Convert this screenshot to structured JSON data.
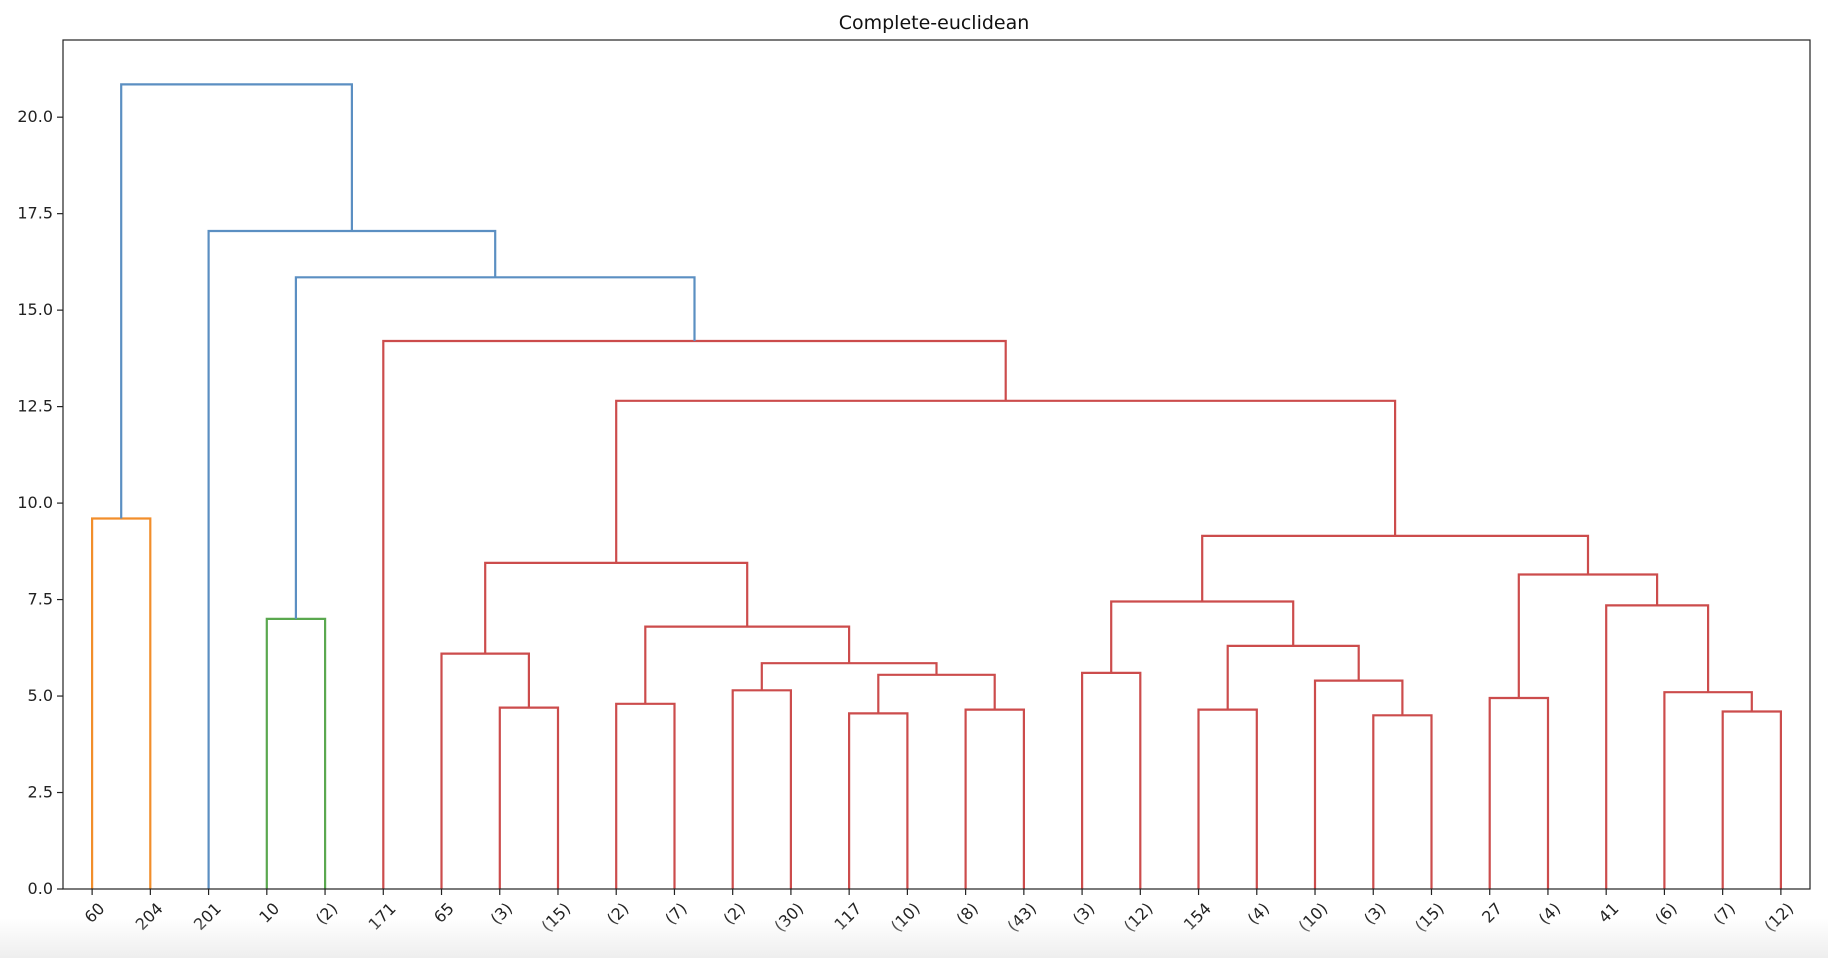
{
  "chart_data": {
    "type": "dendrogram",
    "title": "Complete-euclidean",
    "xlabel": "",
    "ylabel": "",
    "ylim": [
      0,
      22.0
    ],
    "yticks": [
      0.0,
      2.5,
      5.0,
      7.5,
      10.0,
      12.5,
      15.0,
      17.5,
      20.0
    ],
    "grid": false,
    "leaves": [
      "60",
      "204",
      "201",
      "10",
      "(2)",
      "171",
      "65",
      "(3)",
      "(15)",
      "(2)",
      "(7)",
      "(2)",
      "(30)",
      "117",
      "(10)",
      "(8)",
      "(43)",
      "(3)",
      "(12)",
      "154",
      "(4)",
      "(10)",
      "(3)",
      "(15)",
      "27",
      "(4)",
      "41",
      "(6)",
      "(7)",
      "(12)"
    ],
    "links": [
      {
        "left": 0,
        "right": 1,
        "height": 9.6,
        "color": "orange"
      },
      {
        "left": 3,
        "right": 4,
        "height": 7.0,
        "color": "green"
      },
      {
        "left": 7,
        "right": 8,
        "height": 4.7,
        "color": "red"
      },
      {
        "left": 6,
        "right": "L3",
        "height": 6.1,
        "color": "red"
      },
      {
        "left": 9,
        "right": 10,
        "height": 4.8,
        "color": "red"
      },
      {
        "left": 11,
        "right": 12,
        "height": 5.15,
        "color": "red"
      },
      {
        "left": 13,
        "right": 14,
        "height": 4.55,
        "color": "red"
      },
      {
        "left": 15,
        "right": 16,
        "height": 4.65,
        "color": "red"
      },
      {
        "left": "L7",
        "right": "L8",
        "height": 5.55,
        "color": "red"
      },
      {
        "left": "L6",
        "right": "L9",
        "height": 5.85,
        "color": "red"
      },
      {
        "left": "L5",
        "right": "L10",
        "height": 6.8,
        "color": "red"
      },
      {
        "left": "L4",
        "right": "L11",
        "height": 8.45,
        "color": "red"
      },
      {
        "left": 17,
        "right": 18,
        "height": 5.6,
        "color": "red"
      },
      {
        "left": 19,
        "right": 20,
        "height": 4.65,
        "color": "red"
      },
      {
        "left": 22,
        "right": 23,
        "height": 4.5,
        "color": "red"
      },
      {
        "left": 21,
        "right": "L15",
        "height": 5.4,
        "color": "red"
      },
      {
        "left": "L14",
        "right": "L16",
        "height": 6.3,
        "color": "red"
      },
      {
        "left": "L13",
        "right": "L17",
        "height": 7.45,
        "color": "red"
      },
      {
        "left": 24,
        "right": 25,
        "height": 4.95,
        "color": "red"
      },
      {
        "left": 28,
        "right": 29,
        "height": 4.6,
        "color": "red"
      },
      {
        "left": 27,
        "right": "L20",
        "height": 5.1,
        "color": "red"
      },
      {
        "left": 26,
        "right": "L21",
        "height": 7.35,
        "color": "red"
      },
      {
        "left": "L19",
        "right": "L22",
        "height": 8.15,
        "color": "red"
      },
      {
        "left": "L18",
        "right": "L23",
        "height": 9.15,
        "color": "red"
      },
      {
        "left": "L12",
        "right": "L24",
        "height": 12.65,
        "color": "red"
      },
      {
        "left": 5,
        "right": "L25",
        "height": 14.2,
        "color": "red"
      },
      {
        "left": "L2",
        "right": "L26",
        "height": 15.85,
        "color": "blue"
      },
      {
        "left": 2,
        "right": "L27",
        "height": 17.05,
        "color": "blue"
      },
      {
        "left": "L1",
        "right": "L28",
        "height": 20.85,
        "color": "blue"
      }
    ],
    "colors": {
      "orange": "#f28e2b",
      "green": "#5aa84f",
      "red": "#cc4c4c",
      "blue": "#5b8fc2",
      "axis": "#222222",
      "text": "#222222"
    }
  }
}
